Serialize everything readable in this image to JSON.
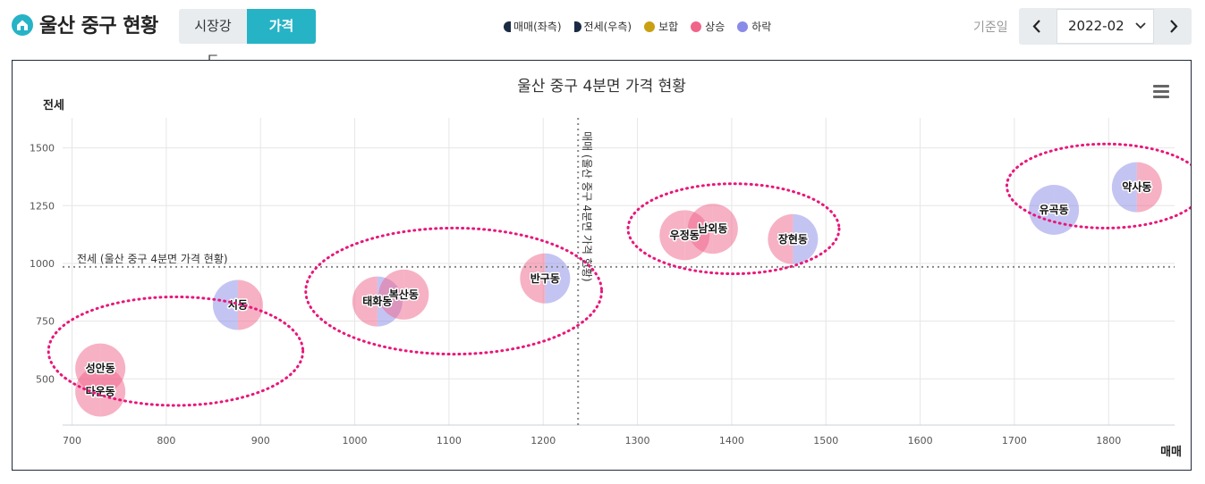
{
  "header": {
    "title": "울산 중구 현황",
    "tabs": [
      {
        "label": "시장강도",
        "active": false
      },
      {
        "label": "가격",
        "active": true
      }
    ],
    "legend": [
      {
        "label": "매매(좌측)",
        "shape": "half-left",
        "color": "#1b2b44"
      },
      {
        "label": "전세(우측)",
        "shape": "half-right",
        "color": "#1b2b44"
      },
      {
        "label": "보합",
        "shape": "dot",
        "color": "#c9a012"
      },
      {
        "label": "상승",
        "shape": "dot",
        "color": "#f0648a"
      },
      {
        "label": "하락",
        "shape": "dot",
        "color": "#8a8ae8"
      }
    ],
    "date_label": "기준일",
    "date_value": "2022-02",
    "prev_icon": "chevron-left-icon",
    "next_icon": "chevron-right-icon"
  },
  "colors": {
    "rise": "#f0648a",
    "fall": "#8a8ae8",
    "flat": "#c9a012",
    "accent": "#26b3c6",
    "dotted_circle": "#e8177a"
  },
  "chart_data": {
    "type": "bubble",
    "title": "울산 중구 4분면 가격 현황",
    "xlabel": "매매",
    "ylabel": "전세",
    "xlim": [
      690,
      1870
    ],
    "ylim": [
      300,
      1630
    ],
    "x_ticks": [
      700,
      800,
      900,
      1000,
      1100,
      1200,
      1300,
      1400,
      1500,
      1600,
      1700,
      1800
    ],
    "y_ticks": [
      500,
      750,
      1000,
      1250,
      1500
    ],
    "grid": true,
    "menu_icon": "hamburger-menu-icon",
    "reference_lines": [
      {
        "axis": "y",
        "value": 985,
        "label": "전세 (울산 중구 4분면 가격 현황)"
      },
      {
        "axis": "x",
        "value": 1237,
        "label": "매매 (울산 중구 4분면 가격 현황)"
      }
    ],
    "points": [
      {
        "name": "성안동",
        "x": 730,
        "y": 545,
        "sale": "rise",
        "jeonse": "rise"
      },
      {
        "name": "다운동",
        "x": 730,
        "y": 445,
        "sale": "rise",
        "jeonse": "rise"
      },
      {
        "name": "서동",
        "x": 876,
        "y": 820,
        "sale": "fall",
        "jeonse": "rise"
      },
      {
        "name": "태화동",
        "x": 1024,
        "y": 835,
        "sale": "rise",
        "jeonse": "fall"
      },
      {
        "name": "복산동",
        "x": 1052,
        "y": 865,
        "sale": "rise",
        "jeonse": "rise"
      },
      {
        "name": "반구동",
        "x": 1202,
        "y": 935,
        "sale": "rise",
        "jeonse": "fall"
      },
      {
        "name": "우정동",
        "x": 1350,
        "y": 1122,
        "sale": "rise",
        "jeonse": "rise"
      },
      {
        "name": "남외동",
        "x": 1380,
        "y": 1150,
        "sale": "rise",
        "jeonse": "rise"
      },
      {
        "name": "장현동",
        "x": 1465,
        "y": 1105,
        "sale": "rise",
        "jeonse": "fall"
      },
      {
        "name": "유곡동",
        "x": 1742,
        "y": 1232,
        "sale": "fall",
        "jeonse": "fall"
      },
      {
        "name": "약사동",
        "x": 1830,
        "y": 1330,
        "sale": "fall",
        "jeonse": "rise"
      }
    ],
    "cluster_circles": [
      {
        "cx": 810,
        "cy": 620,
        "rx": 135,
        "ry": 235
      },
      {
        "cx": 1105,
        "cy": 880,
        "rx": 157,
        "ry": 273
      },
      {
        "cx": 1402,
        "cy": 1150,
        "rx": 112,
        "ry": 195
      },
      {
        "cx": 1797,
        "cy": 1335,
        "rx": 105,
        "ry": 182
      }
    ]
  }
}
